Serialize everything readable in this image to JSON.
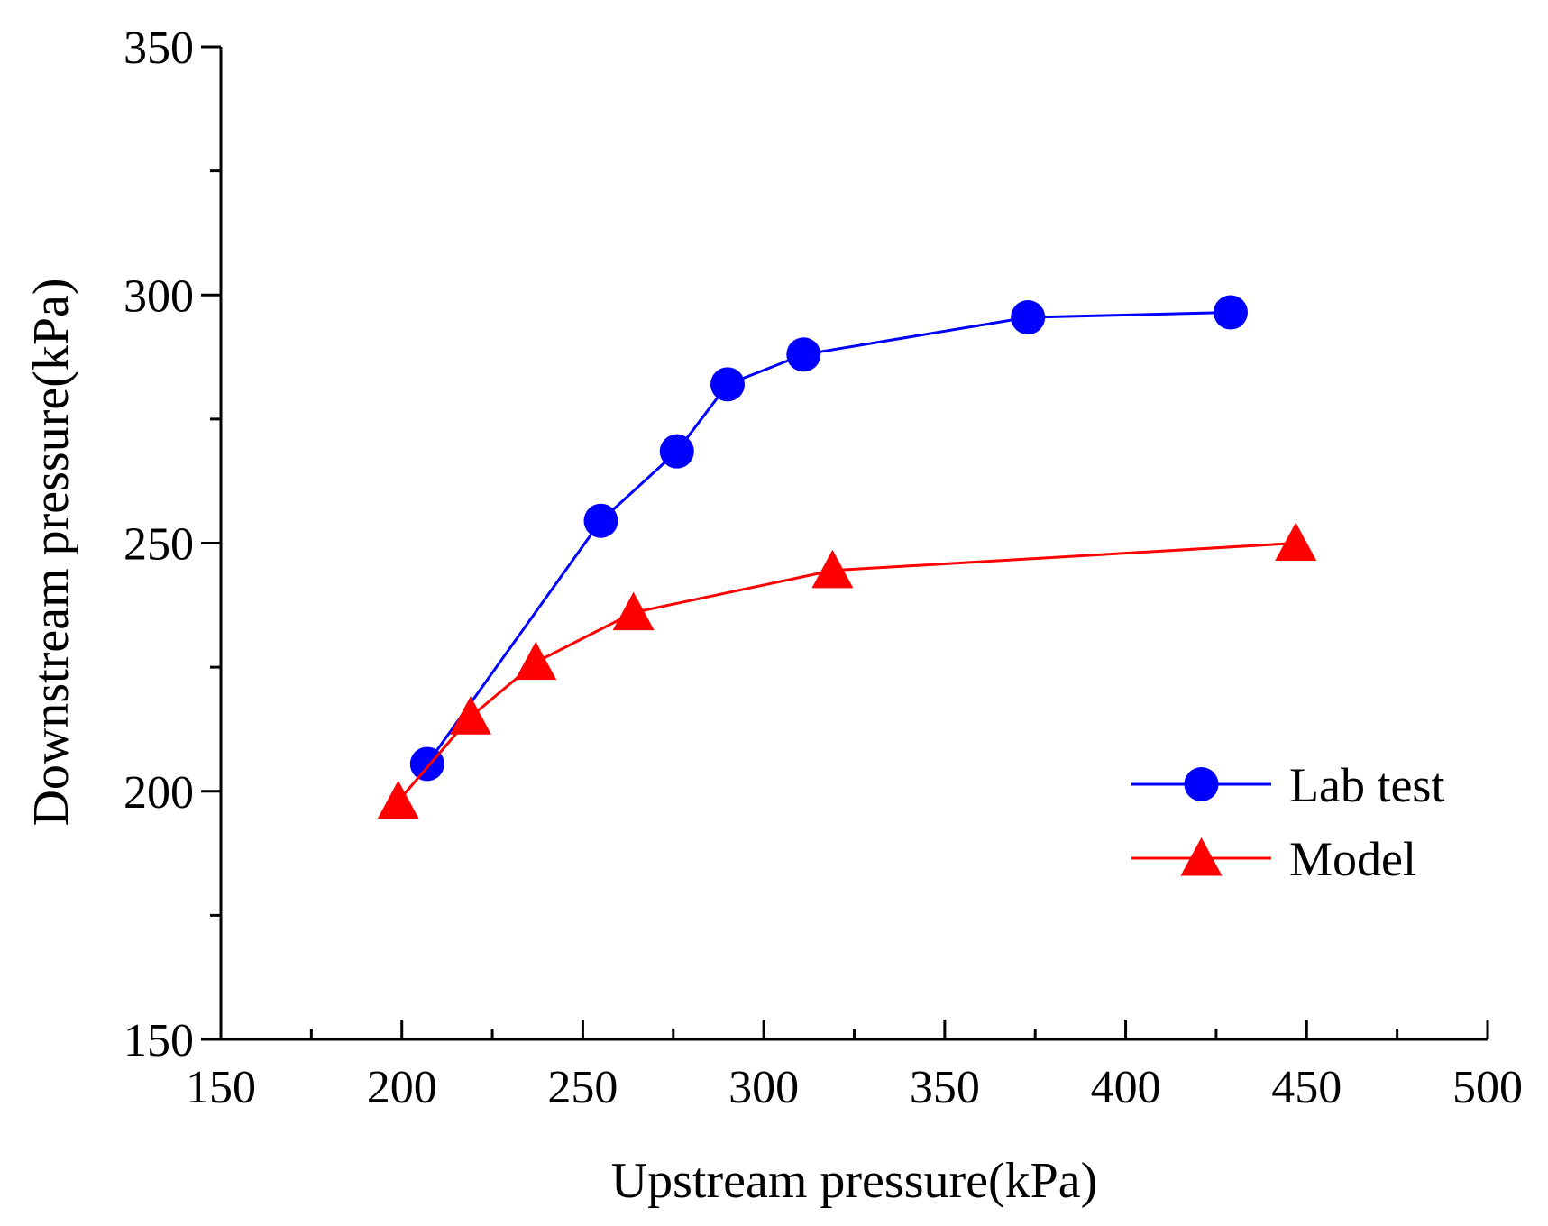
{
  "chart_data": {
    "type": "line",
    "title": "",
    "xlabel": "Upstream pressure(kPa)",
    "ylabel": "Downstream pressure(kPa)",
    "xlim": [
      150,
      500
    ],
    "ylim": [
      150,
      350
    ],
    "xticks": [
      "150",
      "200",
      "250",
      "300",
      "350",
      "400",
      "450",
      "500"
    ],
    "yticks": [
      "150",
      "200",
      "250",
      "300",
      "350"
    ],
    "grid": false,
    "legend_position": "right",
    "series": [
      {
        "name": "Lab test",
        "color": "#0000ff",
        "marker": "circle",
        "x": [
          207,
          255,
          276,
          290,
          311,
          373,
          429
        ],
        "y": [
          205.5,
          254.5,
          268.5,
          282,
          288,
          295.5,
          296.5
        ]
      },
      {
        "name": "Model",
        "color": "#ff0000",
        "marker": "triangle",
        "x": [
          199,
          219,
          237,
          264,
          319,
          447
        ],
        "y": [
          198,
          215,
          226,
          236,
          244.5,
          250
        ]
      }
    ]
  }
}
